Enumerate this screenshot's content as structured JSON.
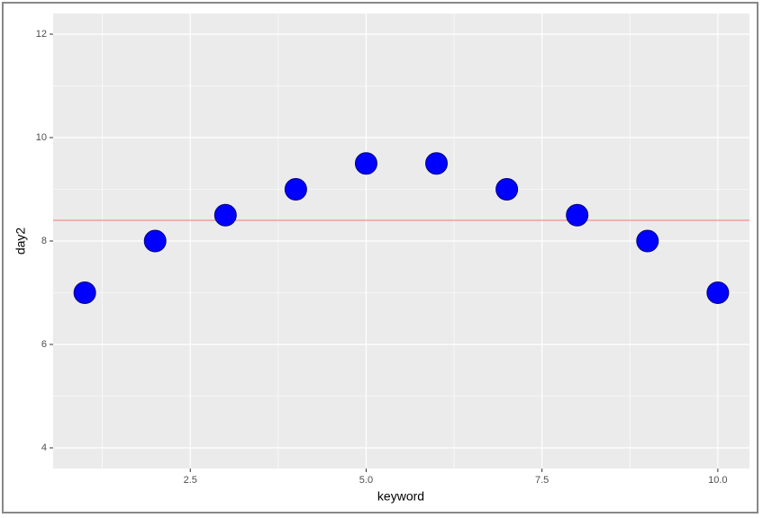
{
  "chart_data": {
    "type": "scatter",
    "x_label": "keyword",
    "y_label": "day2",
    "x": [
      1,
      2,
      3,
      4,
      5,
      6,
      7,
      8,
      9,
      10
    ],
    "series": [
      {
        "color": "#0000ff",
        "values": [
          7,
          8,
          8.5,
          9,
          9.5,
          9.5,
          9,
          8.5,
          8,
          7
        ]
      }
    ],
    "hline": {
      "value": 8.4,
      "color": "#f8766d"
    },
    "xlim": [
      0.55,
      10.45
    ],
    "ylim": [
      3.6,
      12.4
    ],
    "xticks": [
      2.5,
      {
        "value": 5,
        "label": "5.0"
      },
      7.5,
      {
        "value": 10,
        "label": "10.0"
      }
    ],
    "yticks": [
      4,
      6,
      8,
      10,
      12
    ],
    "x_minor": [
      1.25,
      3.75,
      6.25,
      8.75
    ],
    "y_minor": [
      5,
      7,
      9,
      11
    ],
    "grid": true
  }
}
